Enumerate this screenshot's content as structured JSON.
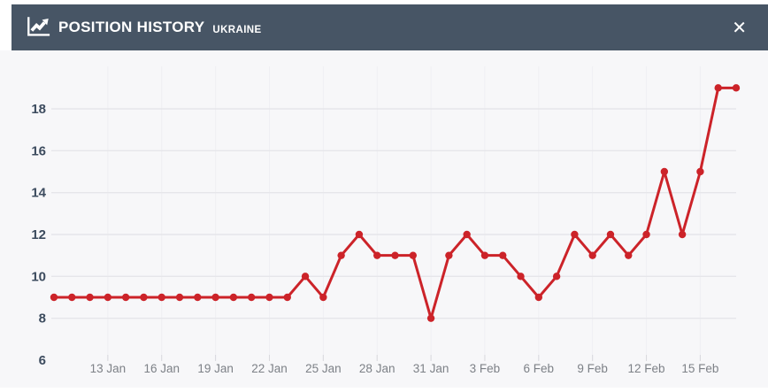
{
  "header": {
    "title": "POSITION HISTORY",
    "subtitle": "UKRAINE",
    "close_label": "✕",
    "icon": "chart-line-icon",
    "bg_color": "#475565"
  },
  "chart_data": {
    "type": "line",
    "title": "Position history for Ukraine",
    "x": [
      "10 Jan",
      "11 Jan",
      "12 Jan",
      "13 Jan",
      "14 Jan",
      "15 Jan",
      "16 Jan",
      "17 Jan",
      "18 Jan",
      "19 Jan",
      "20 Jan",
      "21 Jan",
      "22 Jan",
      "23 Jan",
      "24 Jan",
      "25 Jan",
      "26 Jan",
      "27 Jan",
      "28 Jan",
      "29 Jan",
      "30 Jan",
      "31 Jan",
      "1 Feb",
      "2 Feb",
      "3 Feb",
      "4 Feb",
      "5 Feb",
      "6 Feb",
      "7 Feb",
      "8 Feb",
      "9 Feb",
      "10 Feb",
      "11 Feb",
      "12 Feb",
      "13 Feb",
      "14 Feb",
      "15 Feb",
      "16 Feb",
      "17 Feb"
    ],
    "values": [
      9,
      9,
      9,
      9,
      9,
      9,
      9,
      9,
      9,
      9,
      9,
      9,
      9,
      9,
      10,
      9,
      11,
      12,
      11,
      11,
      11,
      8,
      11,
      12,
      11,
      11,
      10,
      9,
      10,
      12,
      11,
      12,
      11,
      12,
      15,
      12,
      15,
      19,
      19
    ],
    "series_name": "Position",
    "ylim": [
      6,
      19.8
    ],
    "yticks": [
      6,
      8,
      10,
      12,
      14,
      16,
      18
    ],
    "xtick_indices": [
      3,
      6,
      9,
      12,
      15,
      18,
      21,
      24,
      27,
      30,
      33,
      36
    ],
    "xtick_labels": [
      "13 Jan",
      "16 Jan",
      "19 Jan",
      "22 Jan",
      "25 Jan",
      "28 Jan",
      "31 Jan",
      "3 Feb",
      "6 Feb",
      "9 Feb",
      "12 Feb",
      "15 Feb"
    ],
    "line_color": "#cc2329",
    "grid": true,
    "legend_position": "none",
    "colors": {
      "plot_bg": "#f7f7f9",
      "h_gridline": "#e6e6ea",
      "v_gridline": "#efeff3",
      "tick_mark": "#d8d8dd",
      "y_label": "#3c4b5e",
      "x_label": "#7d8187"
    }
  }
}
